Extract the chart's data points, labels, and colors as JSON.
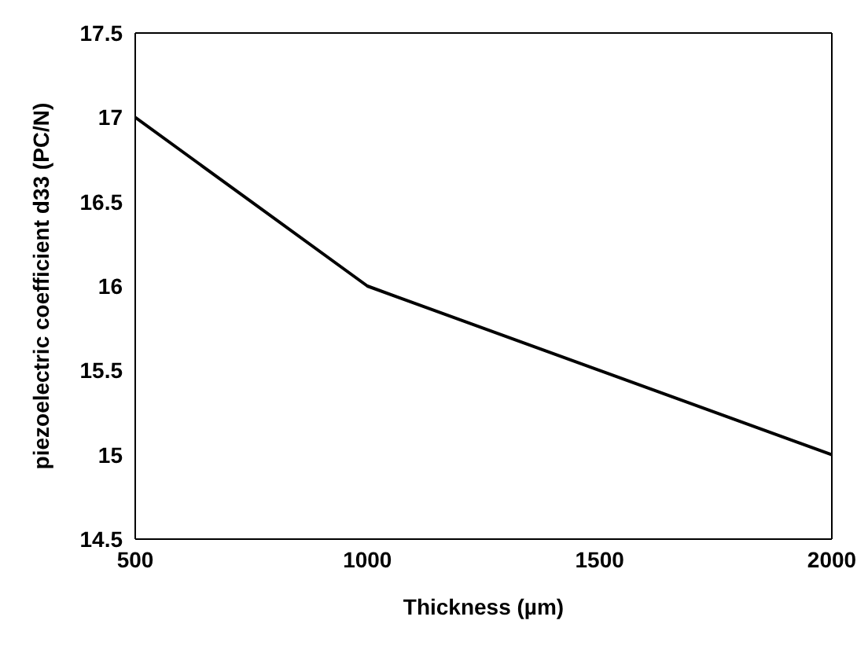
{
  "chart_data": {
    "type": "line",
    "xlabel": "Thickness (µm)",
    "ylabel": "piezoelectric coefficient d33 (PC/N)",
    "x": [
      500,
      1000,
      2000
    ],
    "series": [
      {
        "color": "#000000",
        "values": [
          17,
          16,
          15
        ]
      }
    ],
    "xlim": [
      500,
      2000
    ],
    "xticks": [
      500,
      1000,
      1500,
      2000
    ],
    "ylim": [
      14.5,
      17.5
    ],
    "yticks": [
      14.5,
      15,
      15.5,
      16,
      16.5,
      17,
      17.5
    ],
    "grid": false,
    "marker": "none",
    "line_style": "solid"
  }
}
